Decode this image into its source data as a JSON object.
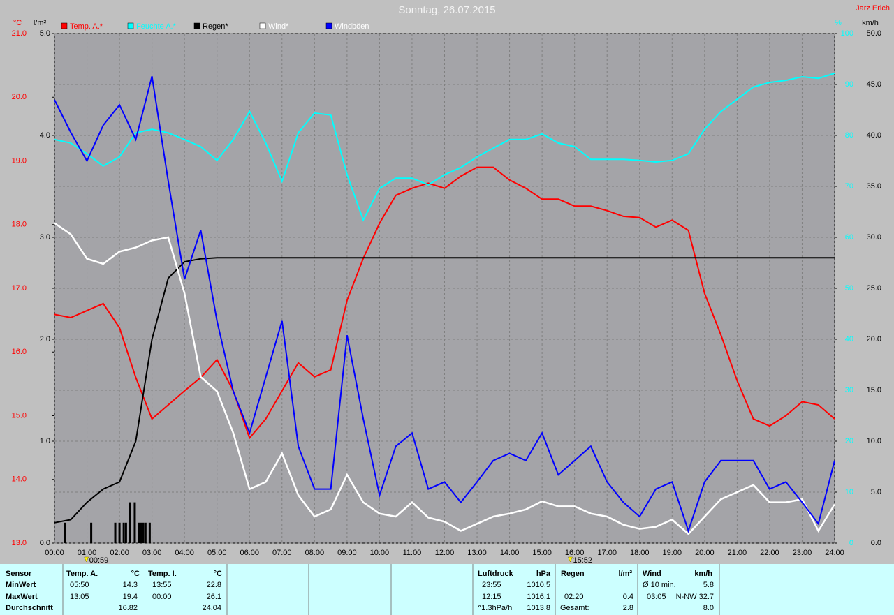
{
  "chart_data": {
    "type": "line",
    "title": "Sonntag, 26.07.2015",
    "author": "Jarz Erich",
    "xlim": [
      0,
      24
    ],
    "xticks": [
      {
        "value": 0,
        "label": "00:00"
      },
      {
        "value": 1,
        "label": "01:00"
      },
      {
        "value": 2,
        "label": "02:00"
      },
      {
        "value": 3,
        "label": "03:00"
      },
      {
        "value": 4,
        "label": "04:00"
      },
      {
        "value": 5,
        "label": "05:00"
      },
      {
        "value": 6,
        "label": "06:00"
      },
      {
        "value": 7,
        "label": "07:00"
      },
      {
        "value": 8,
        "label": "08:00"
      },
      {
        "value": 9,
        "label": "09:00"
      },
      {
        "value": 10,
        "label": "10:00"
      },
      {
        "value": 11,
        "label": "11:00"
      },
      {
        "value": 12,
        "label": "12:00"
      },
      {
        "value": 13,
        "label": "13:00"
      },
      {
        "value": 14,
        "label": "14:00"
      },
      {
        "value": 15,
        "label": "15:00"
      },
      {
        "value": 16,
        "label": "16:00"
      },
      {
        "value": 17,
        "label": "17:00"
      },
      {
        "value": 18,
        "label": "18:00"
      },
      {
        "value": 19,
        "label": "19:00"
      },
      {
        "value": 20,
        "label": "20:00"
      },
      {
        "value": 21,
        "label": "21:00"
      },
      {
        "value": 22,
        "label": "22:00"
      },
      {
        "value": 23,
        "label": "23:00"
      },
      {
        "value": 24,
        "label": "24:00"
      }
    ],
    "axes": [
      {
        "label": "°C",
        "color": "#ff0000",
        "lim": [
          13,
          21
        ],
        "ticks": [
          {
            "value": 13,
            "label": "13.0"
          },
          {
            "value": 14,
            "label": "14.0"
          },
          {
            "value": 15,
            "label": "15.0"
          },
          {
            "value": 16,
            "label": "16.0"
          },
          {
            "value": 17,
            "label": "17.0"
          },
          {
            "value": 18,
            "label": "18.0"
          },
          {
            "value": 19,
            "label": "19.0"
          },
          {
            "value": 20,
            "label": "20.0"
          },
          {
            "value": 21,
            "label": "21.0"
          }
        ]
      },
      {
        "label": "l/m²",
        "color": "#000000",
        "lim": [
          0,
          5
        ],
        "ticks": [
          {
            "value": 0,
            "label": "0.0"
          },
          {
            "value": 1,
            "label": "1.0"
          },
          {
            "value": 2,
            "label": "2.0"
          },
          {
            "value": 3,
            "label": "3.0"
          },
          {
            "value": 4,
            "label": "4.0"
          },
          {
            "value": 5,
            "label": "5.0"
          }
        ]
      },
      {
        "label": "%",
        "color": "#00ffff",
        "lim": [
          0,
          100
        ],
        "ticks": [
          0,
          10,
          20,
          30,
          40,
          50,
          60,
          70,
          80,
          90,
          100
        ],
        "grid": true
      },
      {
        "label": "km/h",
        "color": "#000000",
        "lim": [
          0,
          50
        ],
        "ticks": [
          {
            "value": 0,
            "label": "0.0"
          },
          {
            "value": 5,
            "label": "5.0"
          },
          {
            "value": 10,
            "label": "10.0"
          },
          {
            "value": 15,
            "label": "15.0"
          },
          {
            "value": 20,
            "label": "20.0"
          },
          {
            "value": 25,
            "label": "25.0"
          },
          {
            "value": 30,
            "label": "30.0"
          },
          {
            "value": 35,
            "label": "35.0"
          },
          {
            "value": 40,
            "label": "40.0"
          },
          {
            "value": 45,
            "label": "45.0"
          },
          {
            "value": 50,
            "label": "50.0"
          }
        ]
      }
    ],
    "x": [
      0,
      0.5,
      1,
      1.5,
      2,
      2.5,
      3,
      3.5,
      4,
      4.5,
      5,
      5.5,
      6,
      6.5,
      7,
      7.5,
      8,
      8.5,
      9,
      9.5,
      10,
      10.5,
      11,
      11.5,
      12,
      12.5,
      13,
      13.5,
      14,
      14.5,
      15,
      15.5,
      16,
      16.5,
      17,
      17.5,
      18,
      18.5,
      19,
      19.5,
      20,
      20.5,
      21,
      21.5,
      22,
      22.5,
      23,
      23.5,
      24
    ],
    "series": [
      {
        "name": "Temp. A.*",
        "color": "#ff0000",
        "axis": 0,
        "values": [
          16.59,
          16.54,
          16.65,
          16.76,
          16.38,
          15.6,
          14.95,
          15.17,
          15.39,
          15.6,
          15.88,
          15.39,
          14.65,
          14.95,
          15.39,
          15.83,
          15.61,
          15.72,
          16.81,
          17.47,
          18.02,
          18.46,
          18.57,
          18.65,
          18.57,
          18.76,
          18.9,
          18.9,
          18.7,
          18.57,
          18.4,
          18.4,
          18.29,
          18.29,
          18.22,
          18.13,
          18.11,
          17.96,
          18.07,
          17.91,
          16.92,
          16.27,
          15.55,
          14.95,
          14.84,
          15.0,
          15.22,
          15.17,
          14.95
        ]
      },
      {
        "name": "Feuchte A.*",
        "color": "#00ffff",
        "axis": 2,
        "values": [
          79.2,
          78.5,
          76.4,
          74.0,
          75.8,
          80.5,
          81.2,
          80.5,
          79.2,
          77.8,
          75.1,
          79.2,
          84.7,
          78.5,
          71.0,
          80.5,
          84.4,
          84.0,
          72.3,
          63.4,
          69.6,
          71.6,
          71.6,
          70.3,
          72.3,
          73.7,
          75.8,
          77.5,
          79.2,
          79.2,
          80.3,
          78.5,
          77.8,
          75.3,
          75.3,
          75.3,
          75.1,
          74.8,
          75.1,
          76.4,
          81.2,
          84.7,
          87.1,
          89.5,
          90.4,
          90.8,
          91.5,
          91.2,
          92.2
        ]
      },
      {
        "name": "Regen*",
        "color": "#000000",
        "axis": 1,
        "values": [
          0.2,
          0.23,
          0.4,
          0.53,
          0.6,
          1.0,
          2.0,
          2.6,
          2.76,
          2.79,
          2.8,
          2.8,
          2.8,
          2.8,
          2.8,
          2.8,
          2.8,
          2.8,
          2.8,
          2.8,
          2.8,
          2.8,
          2.8,
          2.8,
          2.8,
          2.8,
          2.8,
          2.8,
          2.8,
          2.8,
          2.8,
          2.8,
          2.8,
          2.8,
          2.8,
          2.8,
          2.8,
          2.8,
          2.8,
          2.8,
          2.8,
          2.8,
          2.8,
          2.8,
          2.8,
          2.8,
          2.8,
          2.8,
          2.8
        ]
      },
      {
        "name": "Wind*",
        "color": "#ffffff",
        "axis": 3,
        "values": [
          31.4,
          30.3,
          27.9,
          27.4,
          28.6,
          29.0,
          29.7,
          30.0,
          24.5,
          16.3,
          14.9,
          10.8,
          5.3,
          6.0,
          8.8,
          4.7,
          2.6,
          3.3,
          6.7,
          4.0,
          2.9,
          2.6,
          4.0,
          2.5,
          2.1,
          1.2,
          1.9,
          2.6,
          2.9,
          3.3,
          4.1,
          3.6,
          3.6,
          2.9,
          2.6,
          1.8,
          1.4,
          1.6,
          2.3,
          0.9,
          2.6,
          4.3,
          5.0,
          5.7,
          4.0,
          4.0,
          4.3,
          1.2,
          3.8
        ]
      },
      {
        "name": "Windböen",
        "color": "#0000ff",
        "axis": 3,
        "values": [
          43.5,
          40.3,
          37.5,
          41.0,
          43.0,
          39.6,
          45.8,
          35.5,
          25.9,
          30.7,
          21.8,
          14.9,
          10.8,
          16.3,
          21.8,
          9.5,
          5.3,
          5.3,
          20.4,
          12.2,
          4.7,
          9.5,
          10.8,
          5.3,
          6.0,
          4.0,
          6.0,
          8.1,
          8.8,
          8.1,
          10.8,
          6.7,
          8.1,
          9.5,
          6.0,
          4.0,
          2.6,
          5.3,
          6.0,
          1.2,
          6.0,
          8.1,
          8.1,
          8.1,
          5.3,
          6.0,
          4.0,
          1.9,
          8.1
        ]
      }
    ],
    "rain_interval": {
      "axis": 1,
      "color": "#000000",
      "x": [
        0.33,
        1.13,
        1.87,
        2.0,
        2.13,
        2.2,
        2.33,
        2.47,
        2.6,
        2.67,
        2.73,
        2.8,
        2.93
      ],
      "values": [
        0.2,
        0.2,
        0.2,
        0.2,
        0.2,
        0.2,
        0.4,
        0.4,
        0.2,
        0.2,
        0.2,
        0.2,
        0.2
      ]
    },
    "markers": [
      {
        "x": 0.983,
        "label": "00:59"
      },
      {
        "x": 15.867,
        "label": "15:52"
      }
    ],
    "grid": true
  },
  "table": {
    "sensor": {
      "header": [
        "Sensor",
        "Temp. A.",
        "°C",
        "Temp. I.",
        "°C"
      ],
      "rows": [
        [
          "MinWert",
          "05:50",
          "14.3",
          "13:55",
          "22.8"
        ],
        [
          "MaxWert",
          "13:05",
          "19.4",
          "00:00",
          "26.1"
        ],
        [
          "Durchschnitt",
          "16.82",
          "24.04"
        ]
      ]
    },
    "pressure": {
      "header": [
        "Luftdruck",
        "hPa"
      ],
      "rows": [
        [
          "23:55",
          "1010.5"
        ],
        [
          "12:15",
          "1016.1"
        ],
        [
          "^1.3hPa/h",
          "1013.8"
        ]
      ]
    },
    "rain": {
      "header": [
        "Regen",
        "l/m²"
      ],
      "rows": [
        [
          "02:20",
          "0.4"
        ],
        [
          "Gesamt:",
          "2.8"
        ]
      ]
    },
    "wind": {
      "header": [
        "Wind",
        "km/h"
      ],
      "rows": [
        [
          "Ø 10 min.",
          "5.8"
        ],
        [
          "03:05",
          "N-NW 32.7"
        ],
        [
          "8.0"
        ]
      ]
    }
  }
}
